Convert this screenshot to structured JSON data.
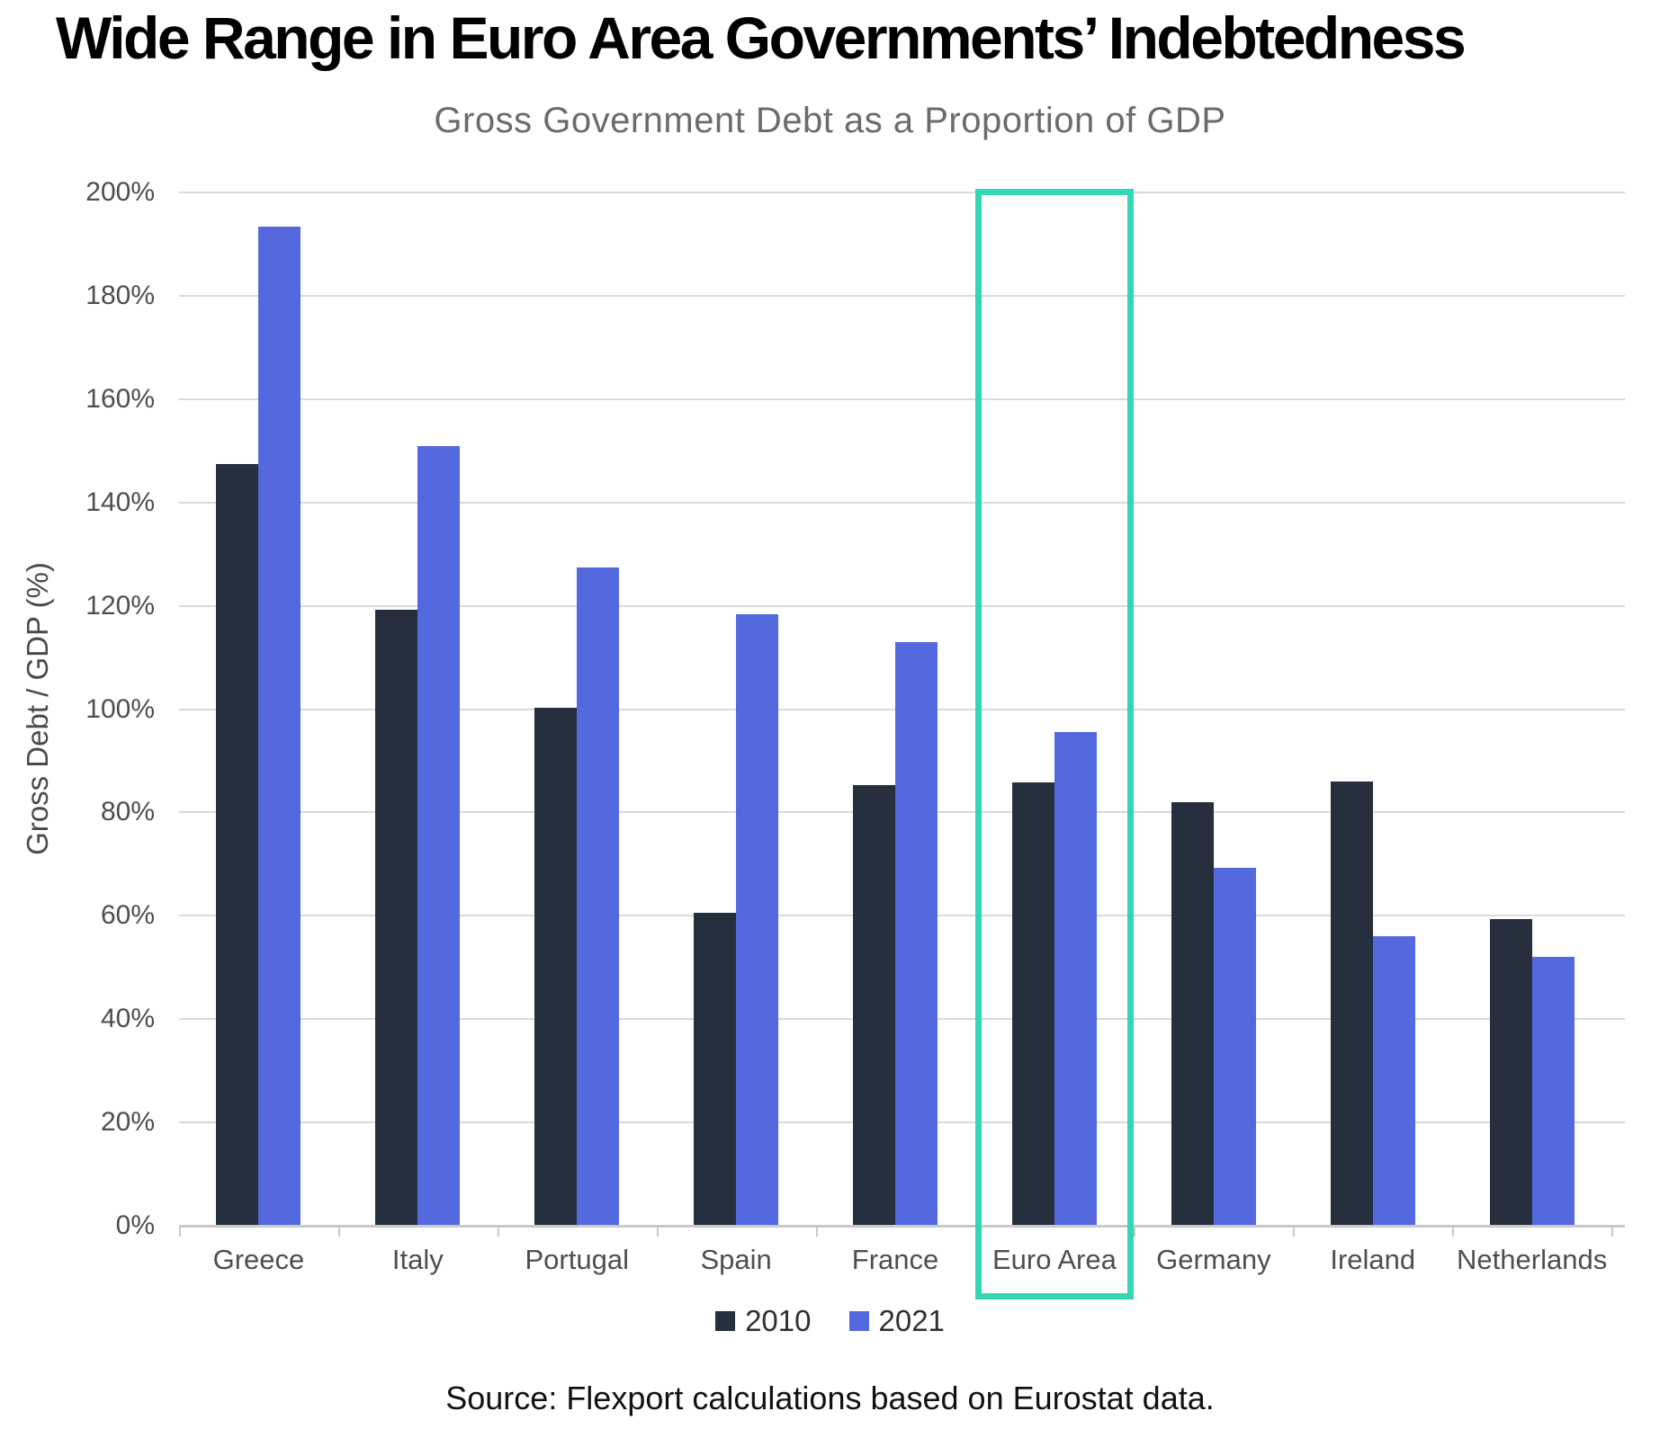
{
  "title": "Wide Range in Euro Area Governments’ Indebtedness",
  "subtitle": "Gross Government Debt as a Proportion of GDP",
  "source": "Source: Flexport calculations based on Eurostat data.",
  "chart_data": {
    "type": "bar",
    "categories": [
      "Greece",
      "Italy",
      "Portugal",
      "Spain",
      "France",
      "Euro Area",
      "Germany",
      "Ireland",
      "Netherlands"
    ],
    "series": [
      {
        "name": "2010",
        "color": "#252f3e",
        "values": [
          147.5,
          119.2,
          100.2,
          60.5,
          85.3,
          85.8,
          82.0,
          86.0,
          59.3
        ]
      },
      {
        "name": "2021",
        "color": "#5569df",
        "values": [
          193.3,
          150.9,
          127.4,
          118.4,
          112.9,
          95.6,
          69.3,
          56.0,
          52.1
        ]
      }
    ],
    "title": "Gross Government Debt as a Proportion of GDP",
    "xlabel": "",
    "ylabel": "Gross Debt / GDP (%)",
    "ylim": [
      0,
      200
    ],
    "ytick_step": 20,
    "ytick_suffix": "%",
    "grid": true,
    "legend_position": "bottom",
    "highlight": {
      "category": "Euro Area",
      "color": "#34d6b3"
    }
  }
}
